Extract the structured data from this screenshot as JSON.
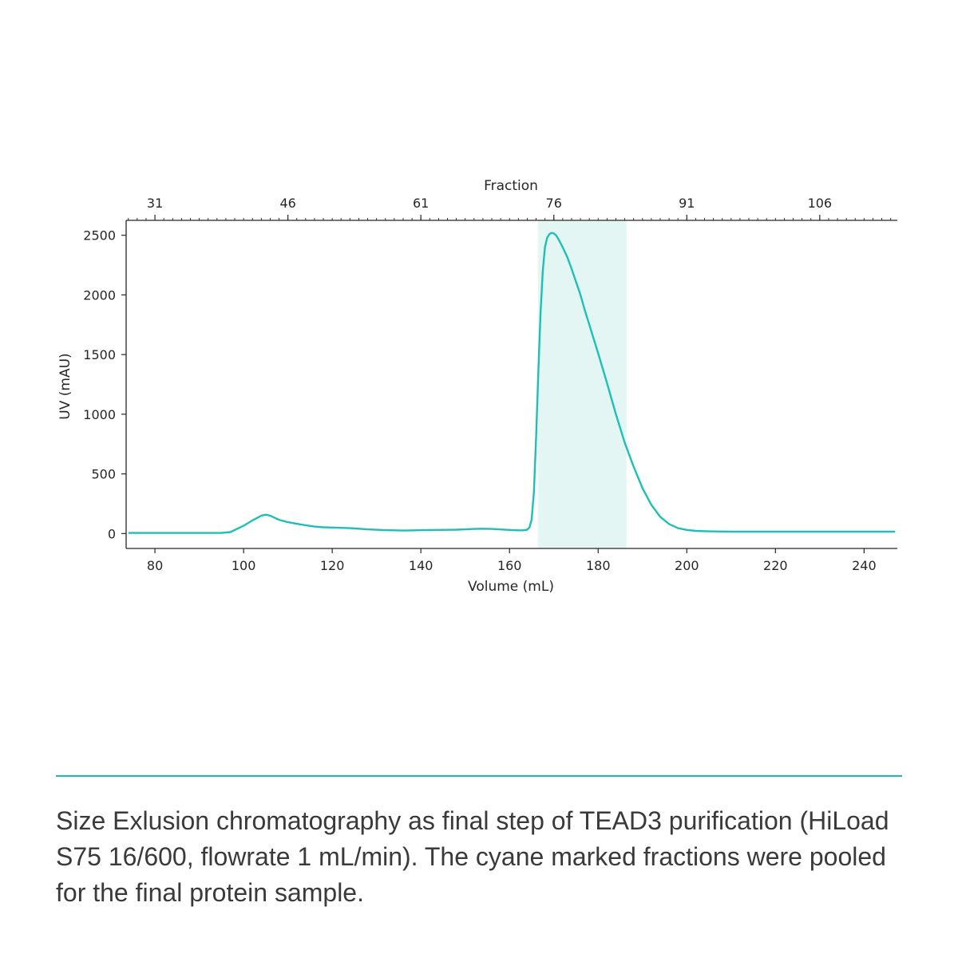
{
  "chart_data": {
    "type": "line",
    "title": "",
    "xlabel": "Volume (mL)",
    "ylabel": "UV (mAU)",
    "top_xlabel": "Fraction",
    "xlim": [
      73.5,
      247.5
    ],
    "ylim": [
      -125,
      2625
    ],
    "x_ticks": [
      80,
      100,
      120,
      140,
      160,
      180,
      200,
      220,
      240
    ],
    "y_ticks": [
      0,
      500,
      1000,
      1500,
      2000,
      2500
    ],
    "top_ticks": [
      {
        "label": "31",
        "volume": 80
      },
      {
        "label": "46",
        "volume": 110
      },
      {
        "label": "61",
        "volume": 140
      },
      {
        "label": "76",
        "volume": 170
      },
      {
        "label": "91",
        "volume": 200
      },
      {
        "label": "106",
        "volume": 230
      }
    ],
    "top_minor_step_volume": 2,
    "shaded_region": {
      "x_start": 166.4,
      "x_end": 186.4,
      "color": "#e4f6f3"
    },
    "line_color": "#20bfb5",
    "grid": false,
    "series": [
      {
        "x": [
          74,
          80,
          90,
          95,
          97,
          100,
          102,
          104,
          105,
          106,
          108,
          110,
          113,
          116,
          118,
          120,
          124,
          128,
          132,
          136,
          140,
          144,
          148,
          150,
          152,
          154,
          156,
          158,
          160,
          162,
          163,
          164,
          164.5,
          165,
          165.5,
          166,
          166.5,
          167,
          167.5,
          168,
          168.5,
          169,
          169.5,
          170,
          170.5,
          171,
          172,
          173,
          174,
          175,
          176,
          177,
          178,
          180,
          182,
          184,
          186,
          188,
          190,
          192,
          194,
          196,
          198,
          200,
          202,
          205,
          210,
          220,
          230,
          240,
          247
        ],
        "y": [
          5,
          5,
          5,
          5,
          12,
          65,
          110,
          150,
          158,
          150,
          115,
          95,
          75,
          58,
          52,
          50,
          45,
          35,
          28,
          25,
          28,
          30,
          32,
          35,
          38,
          40,
          38,
          34,
          30,
          27,
          27,
          32,
          50,
          120,
          350,
          800,
          1350,
          1850,
          2200,
          2400,
          2480,
          2510,
          2520,
          2515,
          2500,
          2470,
          2400,
          2320,
          2220,
          2110,
          2000,
          1870,
          1750,
          1510,
          1260,
          1000,
          760,
          560,
          380,
          240,
          140,
          80,
          45,
          30,
          22,
          18,
          16,
          16,
          16,
          16,
          16
        ]
      }
    ]
  },
  "caption": "Size Exlusion chromatography as final step of TEAD3 purification (HiLoad S75 16/600, flowrate 1 mL/min). The cyane marked fractions were pooled for the final protein sample."
}
